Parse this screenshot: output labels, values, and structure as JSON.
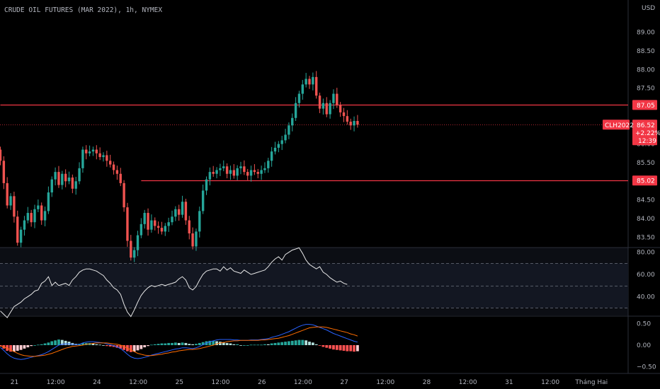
{
  "header": {
    "title": "CRUDE OIL FUTURES (MAR 2022), 1h, NYMEX"
  },
  "currency": "USD",
  "colors": {
    "up": "#26a69a",
    "down": "#ef5350",
    "hline": "#f23645",
    "rsi_line": "#e8e8e8",
    "rsi_band": "#131722",
    "macd_line": "#2962ff",
    "signal_line": "#ff6d00",
    "hist_pos_strong": "#26a69a",
    "hist_pos_weak": "#b2dfdb",
    "hist_neg_strong": "#ff5252",
    "hist_neg_weak": "#ffcdd2",
    "price_tag": "#f23645"
  },
  "price_axis": {
    "ticks": [
      "83.50",
      "84.00",
      "84.50",
      "85.00",
      "85.50",
      "86.00",
      "86.50",
      "87.00",
      "87.50",
      "88.00",
      "88.50",
      "89.00"
    ],
    "range": [
      83.22,
      89.45
    ]
  },
  "rsi_axis": {
    "ticks": [
      "40.00",
      "60.00",
      "80.00"
    ],
    "range": [
      23,
      83
    ],
    "bands": [
      70,
      50,
      30
    ]
  },
  "macd_axis": {
    "ticks": [
      "−0.50",
      "0.00",
      "0.50"
    ],
    "range": [
      -0.62,
      0.62
    ]
  },
  "time_axis": {
    "labels": [
      "21",
      "12:00",
      "24",
      "12:00",
      "25",
      "12:00",
      "26",
      "12:00",
      "27",
      "12:00",
      "28",
      "12:00",
      "31",
      "12:00",
      "Tháng Hai"
    ],
    "bars": [
      0,
      12,
      24,
      36,
      48,
      60,
      72,
      84,
      96,
      108,
      120,
      132,
      144,
      156,
      168
    ]
  },
  "horizontal_lines": [
    {
      "price": 87.05,
      "label": "87.05",
      "from_bar": 0
    },
    {
      "price": 85.02,
      "label": "85.02",
      "from_bar": 41
    }
  ],
  "current_price": {
    "symbol": "CLH2022",
    "price": "86.52",
    "change": "+2.22%",
    "countdown": "12:39",
    "value": 86.52
  },
  "chart_data": {
    "type": "candlestick",
    "title": "CRUDE OIL FUTURES (MAR 2022), 1h, NYMEX",
    "ylabel": "USD",
    "ylim": [
      83.22,
      89.45
    ],
    "close": [
      85.55,
      84.95,
      84.35,
      84.6,
      84.05,
      83.35,
      83.7,
      83.95,
      84.15,
      83.9,
      84.25,
      84.35,
      83.95,
      84.2,
      84.7,
      85.05,
      85.25,
      84.9,
      85.2,
      85.0,
      85.1,
      84.8,
      85.0,
      85.35,
      85.85,
      85.75,
      85.8,
      85.85,
      85.75,
      85.65,
      85.7,
      85.55,
      85.45,
      85.3,
      85.2,
      84.95,
      84.3,
      83.4,
      82.95,
      83.15,
      83.55,
      83.85,
      84.15,
      83.7,
      83.95,
      83.8,
      83.75,
      83.65,
      83.8,
      83.9,
      84.05,
      84.25,
      84.1,
      84.45,
      83.95,
      83.6,
      83.25,
      83.65,
      84.2,
      84.75,
      85.05,
      85.25,
      85.2,
      85.3,
      85.35,
      85.4,
      85.2,
      85.3,
      85.15,
      85.35,
      85.4,
      85.25,
      85.15,
      85.3,
      85.25,
      85.2,
      85.3,
      85.35,
      85.55,
      85.8,
      85.9,
      86.0,
      86.1,
      86.25,
      86.5,
      86.7,
      87.1,
      87.35,
      87.6,
      87.75,
      87.6,
      87.8,
      87.3,
      86.95,
      87.1,
      86.8,
      87.1,
      87.35,
      87.05,
      86.85,
      86.75,
      86.6,
      86.5,
      86.62,
      86.52
    ]
  },
  "rsi_data": {
    "values": [
      27,
      24,
      21,
      26,
      31,
      33,
      35,
      38,
      40,
      42,
      45,
      46,
      52,
      54,
      58,
      50,
      53,
      50,
      51,
      52,
      50,
      55,
      58,
      62,
      64,
      65,
      65,
      64,
      63,
      61,
      59,
      55,
      52,
      48,
      46,
      42,
      33,
      26,
      22,
      28,
      35,
      41,
      45,
      48,
      50,
      49,
      50,
      51,
      50,
      51,
      52,
      53,
      56,
      58,
      55,
      48,
      46,
      49,
      55,
      60,
      63,
      64,
      65,
      65,
      63,
      67,
      64,
      66,
      63,
      62,
      61,
      64,
      62,
      60,
      61,
      62,
      63,
      64,
      67,
      71,
      74,
      76,
      73,
      78,
      80,
      82,
      83,
      84,
      79,
      73,
      69,
      67,
      65,
      67,
      62,
      60,
      57,
      55,
      53,
      54,
      52,
      51
    ]
  },
  "macd_data": {
    "macd": [
      -0.05,
      -0.12,
      -0.2,
      -0.26,
      -0.3,
      -0.32,
      -0.33,
      -0.32,
      -0.3,
      -0.28,
      -0.26,
      -0.24,
      -0.22,
      -0.19,
      -0.15,
      -0.1,
      -0.05,
      0.0,
      0.02,
      0.03,
      0.03,
      0.02,
      0.01,
      0.02,
      0.05,
      0.07,
      0.08,
      0.08,
      0.07,
      0.06,
      0.05,
      0.03,
      0.01,
      -0.01,
      -0.04,
      -0.08,
      -0.14,
      -0.21,
      -0.27,
      -0.3,
      -0.31,
      -0.3,
      -0.28,
      -0.26,
      -0.23,
      -0.21,
      -0.19,
      -0.17,
      -0.15,
      -0.13,
      -0.11,
      -0.09,
      -0.08,
      -0.06,
      -0.06,
      -0.07,
      -0.08,
      -0.06,
      -0.03,
      0.01,
      0.05,
      0.08,
      0.1,
      0.12,
      0.13,
      0.13,
      0.13,
      0.13,
      0.12,
      0.12,
      0.11,
      0.11,
      0.11,
      0.12,
      0.12,
      0.12,
      0.13,
      0.14,
      0.15,
      0.18,
      0.2,
      0.22,
      0.25,
      0.28,
      0.31,
      0.35,
      0.39,
      0.43,
      0.46,
      0.48,
      0.48,
      0.47,
      0.44,
      0.41,
      0.38,
      0.35,
      0.31,
      0.27,
      0.24,
      0.21,
      0.18,
      0.15,
      0.12,
      0.09,
      0.07
    ],
    "signal": [
      -0.02,
      -0.04,
      -0.07,
      -0.11,
      -0.15,
      -0.19,
      -0.22,
      -0.24,
      -0.25,
      -0.26,
      -0.26,
      -0.25,
      -0.24,
      -0.23,
      -0.21,
      -0.19,
      -0.16,
      -0.13,
      -0.1,
      -0.07,
      -0.05,
      -0.03,
      -0.02,
      -0.01,
      0.0,
      0.02,
      0.03,
      0.04,
      0.05,
      0.05,
      0.05,
      0.05,
      0.04,
      0.03,
      0.02,
      0.0,
      -0.03,
      -0.07,
      -0.11,
      -0.15,
      -0.19,
      -0.21,
      -0.23,
      -0.24,
      -0.24,
      -0.23,
      -0.22,
      -0.21,
      -0.19,
      -0.18,
      -0.16,
      -0.15,
      -0.13,
      -0.12,
      -0.11,
      -0.1,
      -0.1,
      -0.09,
      -0.08,
      -0.06,
      -0.04,
      -0.02,
      0.0,
      0.03,
      0.05,
      0.06,
      0.08,
      0.09,
      0.1,
      0.1,
      0.11,
      0.11,
      0.11,
      0.11,
      0.11,
      0.11,
      0.12,
      0.12,
      0.13,
      0.14,
      0.15,
      0.16,
      0.18,
      0.2,
      0.22,
      0.25,
      0.28,
      0.31,
      0.34,
      0.37,
      0.4,
      0.41,
      0.42,
      0.42,
      0.42,
      0.41,
      0.39,
      0.37,
      0.35,
      0.33,
      0.31,
      0.29,
      0.26,
      0.24,
      0.21
    ]
  }
}
